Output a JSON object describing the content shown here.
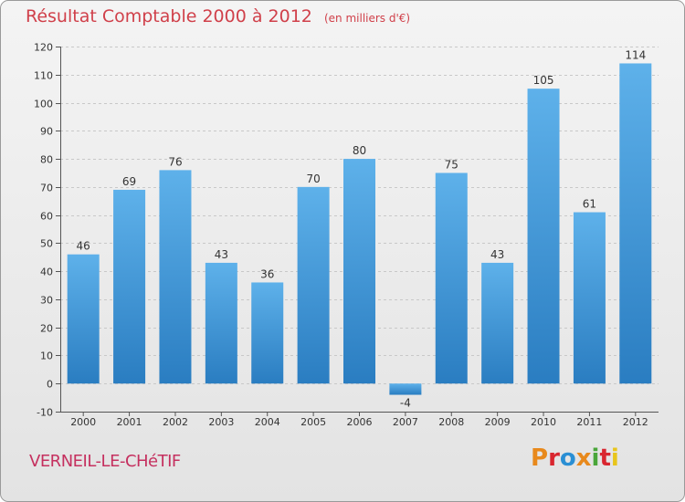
{
  "header": {
    "title": "Résultat Comptable 2000 à 2012",
    "unit": "(en milliers d'€)"
  },
  "footer": {
    "commune": "VERNEIL-LE-CHéTIF",
    "brand": "Proxiti",
    "brand_colors": [
      "#e8891c",
      "#d9262f",
      "#2a8fd4",
      "#e8891c",
      "#4aa63a",
      "#d9262f",
      "#e8c51c"
    ]
  },
  "colors": {
    "bar_top": "#5eb1ea",
    "bar_bottom": "#2a7dc1",
    "title": "#d0404a",
    "grid": "#c8c8c8"
  },
  "chart_data": {
    "type": "bar",
    "title": "Résultat Comptable 2000 à 2012",
    "subtitle": "(en milliers d'€)",
    "xlabel": "",
    "ylabel": "",
    "categories": [
      "2000",
      "2001",
      "2002",
      "2003",
      "2004",
      "2005",
      "2006",
      "2007",
      "2008",
      "2009",
      "2010",
      "2011",
      "2012"
    ],
    "values": [
      46,
      69,
      76,
      43,
      36,
      70,
      80,
      -4,
      75,
      43,
      105,
      61,
      114
    ],
    "ylim": [
      -10,
      120
    ],
    "yticks": [
      -10,
      0,
      10,
      20,
      30,
      40,
      50,
      60,
      70,
      80,
      90,
      100,
      110,
      120
    ],
    "grid": true,
    "legend": "none"
  }
}
